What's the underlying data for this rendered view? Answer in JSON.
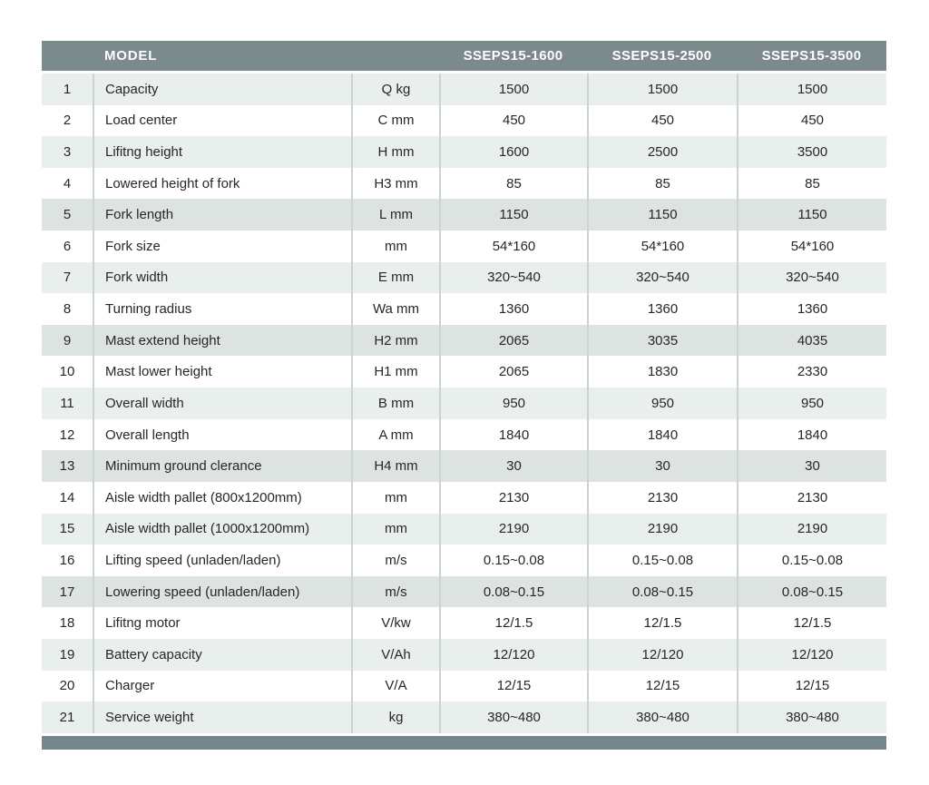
{
  "colors": {
    "header_bg": "#7b8a8c",
    "footer_bar_bg": "#75878a",
    "row_tint_light": "#e9efec",
    "row_tint_dark": "#dce3e0",
    "row_white": "#ffffff",
    "column_divider": "#ccd4d1",
    "header_text": "#ffffff",
    "body_text": "#272727",
    "page_bg": "#ffffff"
  },
  "chart_data": {
    "type": "table",
    "title": "MODEL",
    "columns": [
      "",
      "MODEL",
      "",
      "SSEPS15-1600",
      "SSEPS15-2500",
      "SSEPS15-3500"
    ],
    "legend_position": "none",
    "grid": "alternating-row-tint",
    "rows": [
      {
        "no": "1",
        "name": "Capacity",
        "unit": "Q kg",
        "values": [
          "1500",
          "1500",
          "1500"
        ],
        "tint": "light"
      },
      {
        "no": "2",
        "name": "Load center",
        "unit": "C mm",
        "values": [
          "450",
          "450",
          "450"
        ],
        "tint": "white"
      },
      {
        "no": "3",
        "name": "Lifitng height",
        "unit": "H mm",
        "values": [
          "1600",
          "2500",
          "3500"
        ],
        "tint": "light"
      },
      {
        "no": "4",
        "name": "Lowered height of fork",
        "unit": "H3 mm",
        "values": [
          "85",
          "85",
          "85"
        ],
        "tint": "white"
      },
      {
        "no": "5",
        "name": "Fork length",
        "unit": "L mm",
        "values": [
          "1150",
          "1150",
          "1150"
        ],
        "tint": "dark"
      },
      {
        "no": "6",
        "name": "Fork size",
        "unit": "mm",
        "values": [
          "54*160",
          "54*160",
          "54*160"
        ],
        "tint": "white"
      },
      {
        "no": "7",
        "name": "Fork width",
        "unit": "E mm",
        "values": [
          "320~540",
          "320~540",
          "320~540"
        ],
        "tint": "light"
      },
      {
        "no": "8",
        "name": "Turning radius",
        "unit": "Wa mm",
        "values": [
          "1360",
          "1360",
          "1360"
        ],
        "tint": "white"
      },
      {
        "no": "9",
        "name": "Mast extend height",
        "unit": "H2 mm",
        "values": [
          "2065",
          "3035",
          "4035"
        ],
        "tint": "dark"
      },
      {
        "no": "10",
        "name": "Mast lower height",
        "unit": "H1 mm",
        "values": [
          "2065",
          "1830",
          "2330"
        ],
        "tint": "white"
      },
      {
        "no": "11",
        "name": "Overall width",
        "unit": "B mm",
        "values": [
          "950",
          "950",
          "950"
        ],
        "tint": "light"
      },
      {
        "no": "12",
        "name": "Overall length",
        "unit": "A mm",
        "values": [
          "1840",
          "1840",
          "1840"
        ],
        "tint": "white"
      },
      {
        "no": "13",
        "name": "Minimum ground clerance",
        "unit": "H4 mm",
        "values": [
          "30",
          "30",
          "30"
        ],
        "tint": "dark"
      },
      {
        "no": "14",
        "name": "Aisle width pallet (800x1200mm)",
        "unit": "mm",
        "values": [
          "2130",
          "2130",
          "2130"
        ],
        "tint": "white"
      },
      {
        "no": "15",
        "name": "Aisle width pallet (1000x1200mm)",
        "unit": "mm",
        "values": [
          "2190",
          "2190",
          "2190"
        ],
        "tint": "light"
      },
      {
        "no": "16",
        "name": "Lifting speed (unladen/laden)",
        "unit": "m/s",
        "values": [
          "0.15~0.08",
          "0.15~0.08",
          "0.15~0.08"
        ],
        "tint": "white"
      },
      {
        "no": "17",
        "name": "Lowering speed (unladen/laden)",
        "unit": "m/s",
        "values": [
          "0.08~0.15",
          "0.08~0.15",
          "0.08~0.15"
        ],
        "tint": "dark"
      },
      {
        "no": "18",
        "name": "Lifitng motor",
        "unit": "V/kw",
        "values": [
          "12/1.5",
          "12/1.5",
          "12/1.5"
        ],
        "tint": "white"
      },
      {
        "no": "19",
        "name": "Battery capacity",
        "unit": "V/Ah",
        "values": [
          "12/120",
          "12/120",
          "12/120"
        ],
        "tint": "light"
      },
      {
        "no": "20",
        "name": "Charger",
        "unit": "V/A",
        "values": [
          "12/15",
          "12/15",
          "12/15"
        ],
        "tint": "white"
      },
      {
        "no": "21",
        "name": "Service weight",
        "unit": "kg",
        "values": [
          "380~480",
          "380~480",
          "380~480"
        ],
        "tint": "light"
      }
    ]
  }
}
